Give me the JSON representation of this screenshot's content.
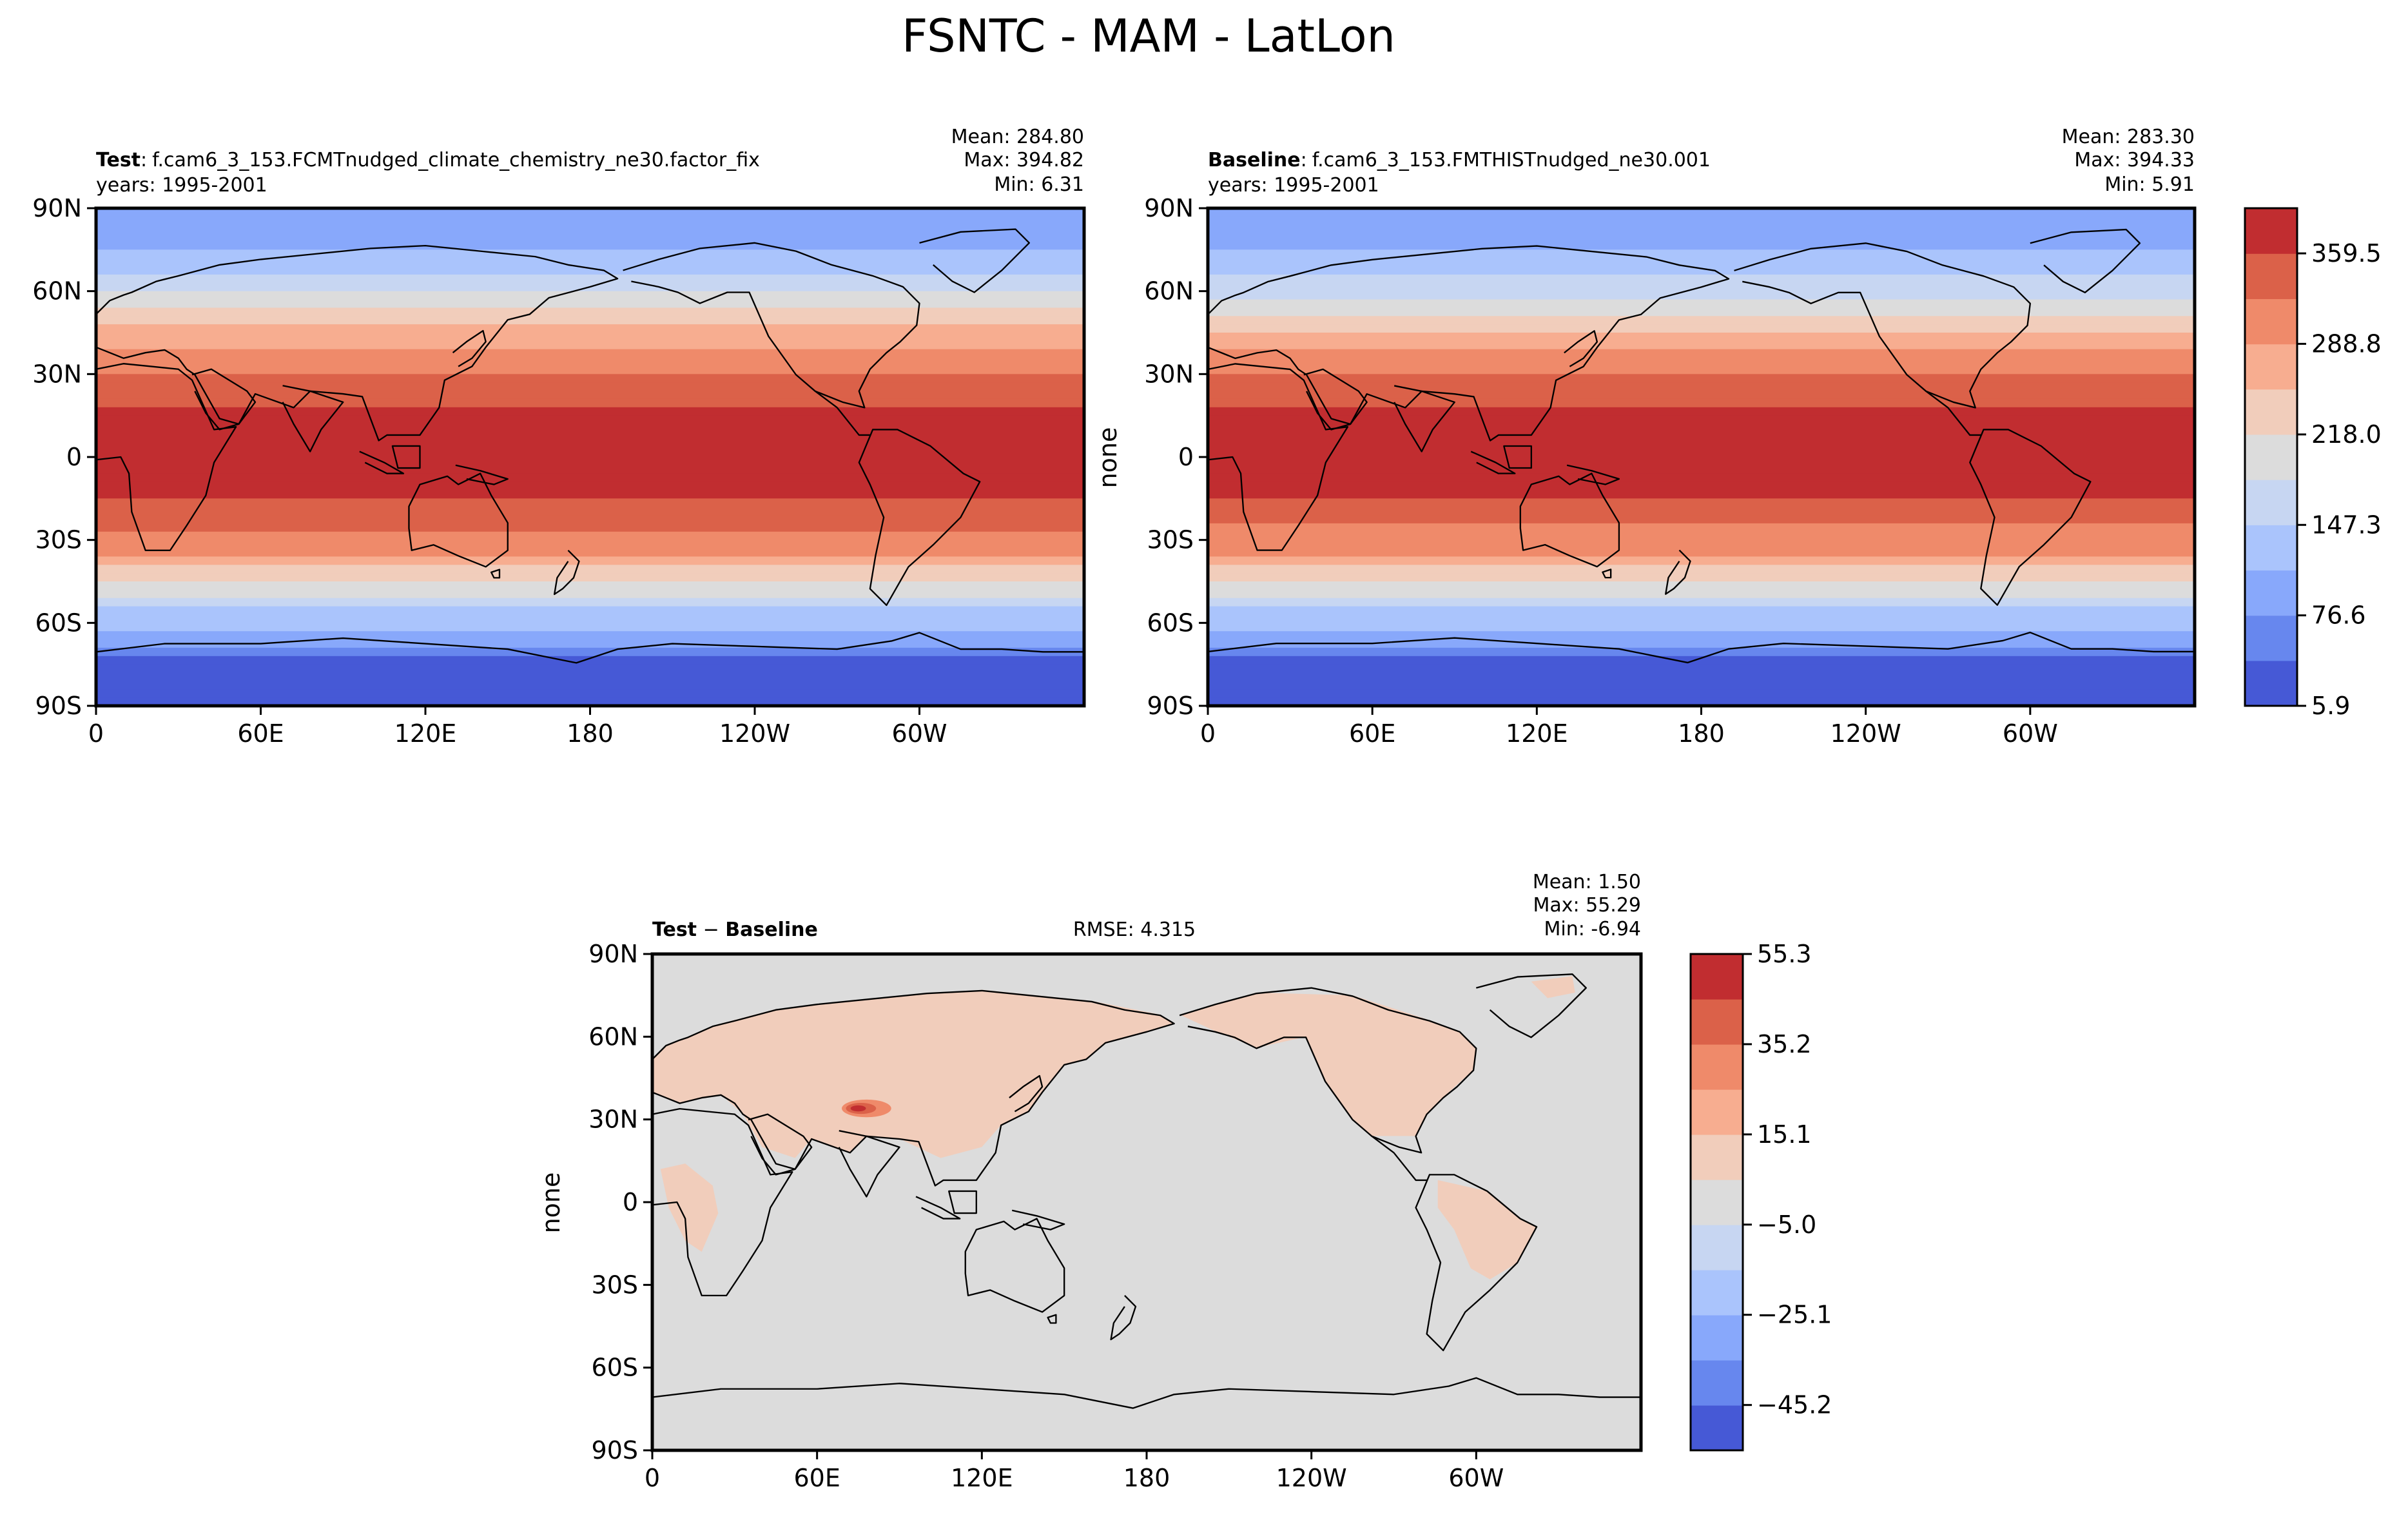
{
  "figure": {
    "title": "FSNTC - MAM - LatLon"
  },
  "panels": [
    {
      "id": "test",
      "label_bold": "Test",
      "label_sep": ":",
      "case_name": "f.cam6_3_153.FCMTnudged_climate_chemistry_ne30.factor_fix",
      "years": "years: 1995-2001",
      "ylabel": "",
      "rmse": "",
      "stats": {
        "mean": "Mean: 284.80",
        "max": "Max: 394.82",
        "min": "Min:  6.31"
      }
    },
    {
      "id": "baseline",
      "label_bold": "Baseline",
      "label_sep": ":",
      "case_name": "f.cam6_3_153.FMTHISTnudged_ne30.001",
      "years": "years: 1995-2001",
      "ylabel": "none",
      "rmse": "",
      "stats": {
        "mean": "Mean: 283.30",
        "max": "Max: 394.33",
        "min": "Min:  5.91"
      }
    },
    {
      "id": "diff",
      "label_bold_a": "Test",
      "label_minus": " − ",
      "label_bold_b": "Baseline",
      "years": "",
      "ylabel": "none",
      "rmse": "RMSE: 4.315",
      "stats": {
        "mean": "Mean:  1.50",
        "max": "Max: 55.29",
        "min": "Min: -6.94"
      }
    }
  ],
  "axes": {
    "lat_ticks": [
      "90N",
      "60N",
      "30N",
      "0",
      "30S",
      "60S",
      "90S"
    ],
    "lon_ticks": [
      "0",
      "60E",
      "120E",
      "180",
      "120W",
      "60W"
    ],
    "lat_values": [
      90,
      60,
      30,
      0,
      -30,
      -60,
      -90
    ],
    "lon_values": [
      0,
      60,
      120,
      180,
      240,
      300
    ],
    "lon_range": [
      0,
      360
    ],
    "lat_range": [
      -90,
      90
    ]
  },
  "colorbars": {
    "main": {
      "ticks": [
        "359.5",
        "288.8",
        "218.0",
        "147.3",
        "76.6",
        "5.9"
      ],
      "tick_values": [
        359.5,
        288.8,
        218.0,
        147.3,
        76.6,
        5.9
      ],
      "range": [
        5.9,
        394.8
      ],
      "colors": [
        "#4659d6",
        "#6787ee",
        "#88a8fb",
        "#aac4fc",
        "#c7d6f2",
        "#dcdcdc",
        "#f1cdbb",
        "#f7ad90",
        "#ef8a6a",
        "#db6149",
        "#c12d30"
      ]
    },
    "diff": {
      "ticks": [
        "55.3",
        "35.2",
        "15.1",
        "−5.0",
        "−25.1",
        "−45.2"
      ],
      "tick_values": [
        55.3,
        35.2,
        15.1,
        -5.0,
        -25.1,
        -45.2
      ],
      "range": [
        -55.3,
        55.3
      ],
      "colors": [
        "#4659d6",
        "#6787ee",
        "#88a8fb",
        "#aac4fc",
        "#c7d6f2",
        "#dcdcdc",
        "#f1cdbb",
        "#f7ad90",
        "#ef8a6a",
        "#db6149",
        "#c12d30"
      ]
    }
  },
  "chart_data": [
    {
      "type": "heatmap",
      "name": "Test",
      "title": "f.cam6_3_153.FCMTnudged_climate_chemistry_ne30.factor_fix",
      "xlabel": "",
      "ylabel": "",
      "xlim": [
        0,
        360
      ],
      "ylim": [
        -90,
        90
      ],
      "colorbar_range": [
        5.9,
        394.8
      ],
      "zonal_profile": {
        "lat": [
          -90,
          -75,
          -65,
          -55,
          -45,
          -35,
          -20,
          -10,
          0,
          10,
          25,
          40,
          50,
          60,
          70,
          80,
          90
        ],
        "value": [
          10,
          30,
          95,
          150,
          215,
          290,
          345,
          380,
          394,
          380,
          340,
          290,
          235,
          175,
          130,
          95,
          80
        ]
      }
    },
    {
      "type": "heatmap",
      "name": "Baseline",
      "title": "f.cam6_3_153.FMTHISTnudged_ne30.001",
      "xlabel": "",
      "ylabel": "none",
      "xlim": [
        0,
        360
      ],
      "ylim": [
        -90,
        90
      ],
      "colorbar_range": [
        5.9,
        394.3
      ],
      "zonal_profile": {
        "lat": [
          -90,
          -75,
          -65,
          -55,
          -45,
          -35,
          -20,
          -10,
          0,
          10,
          25,
          40,
          50,
          60,
          70,
          80,
          90
        ],
        "value": [
          10,
          30,
          93,
          148,
          213,
          288,
          343,
          378,
          393,
          378,
          338,
          286,
          230,
          170,
          125,
          92,
          78
        ]
      }
    },
    {
      "type": "heatmap",
      "name": "Test − Baseline",
      "title": "RMSE: 4.315",
      "xlabel": "",
      "ylabel": "none",
      "xlim": [
        0,
        360
      ],
      "ylim": [
        -90,
        90
      ],
      "colorbar_range": [
        -55.3,
        55.3
      ],
      "background_value": 0,
      "land_value": 8,
      "hotspot": {
        "lon": 80,
        "lat": 34,
        "value": 55
      }
    }
  ]
}
